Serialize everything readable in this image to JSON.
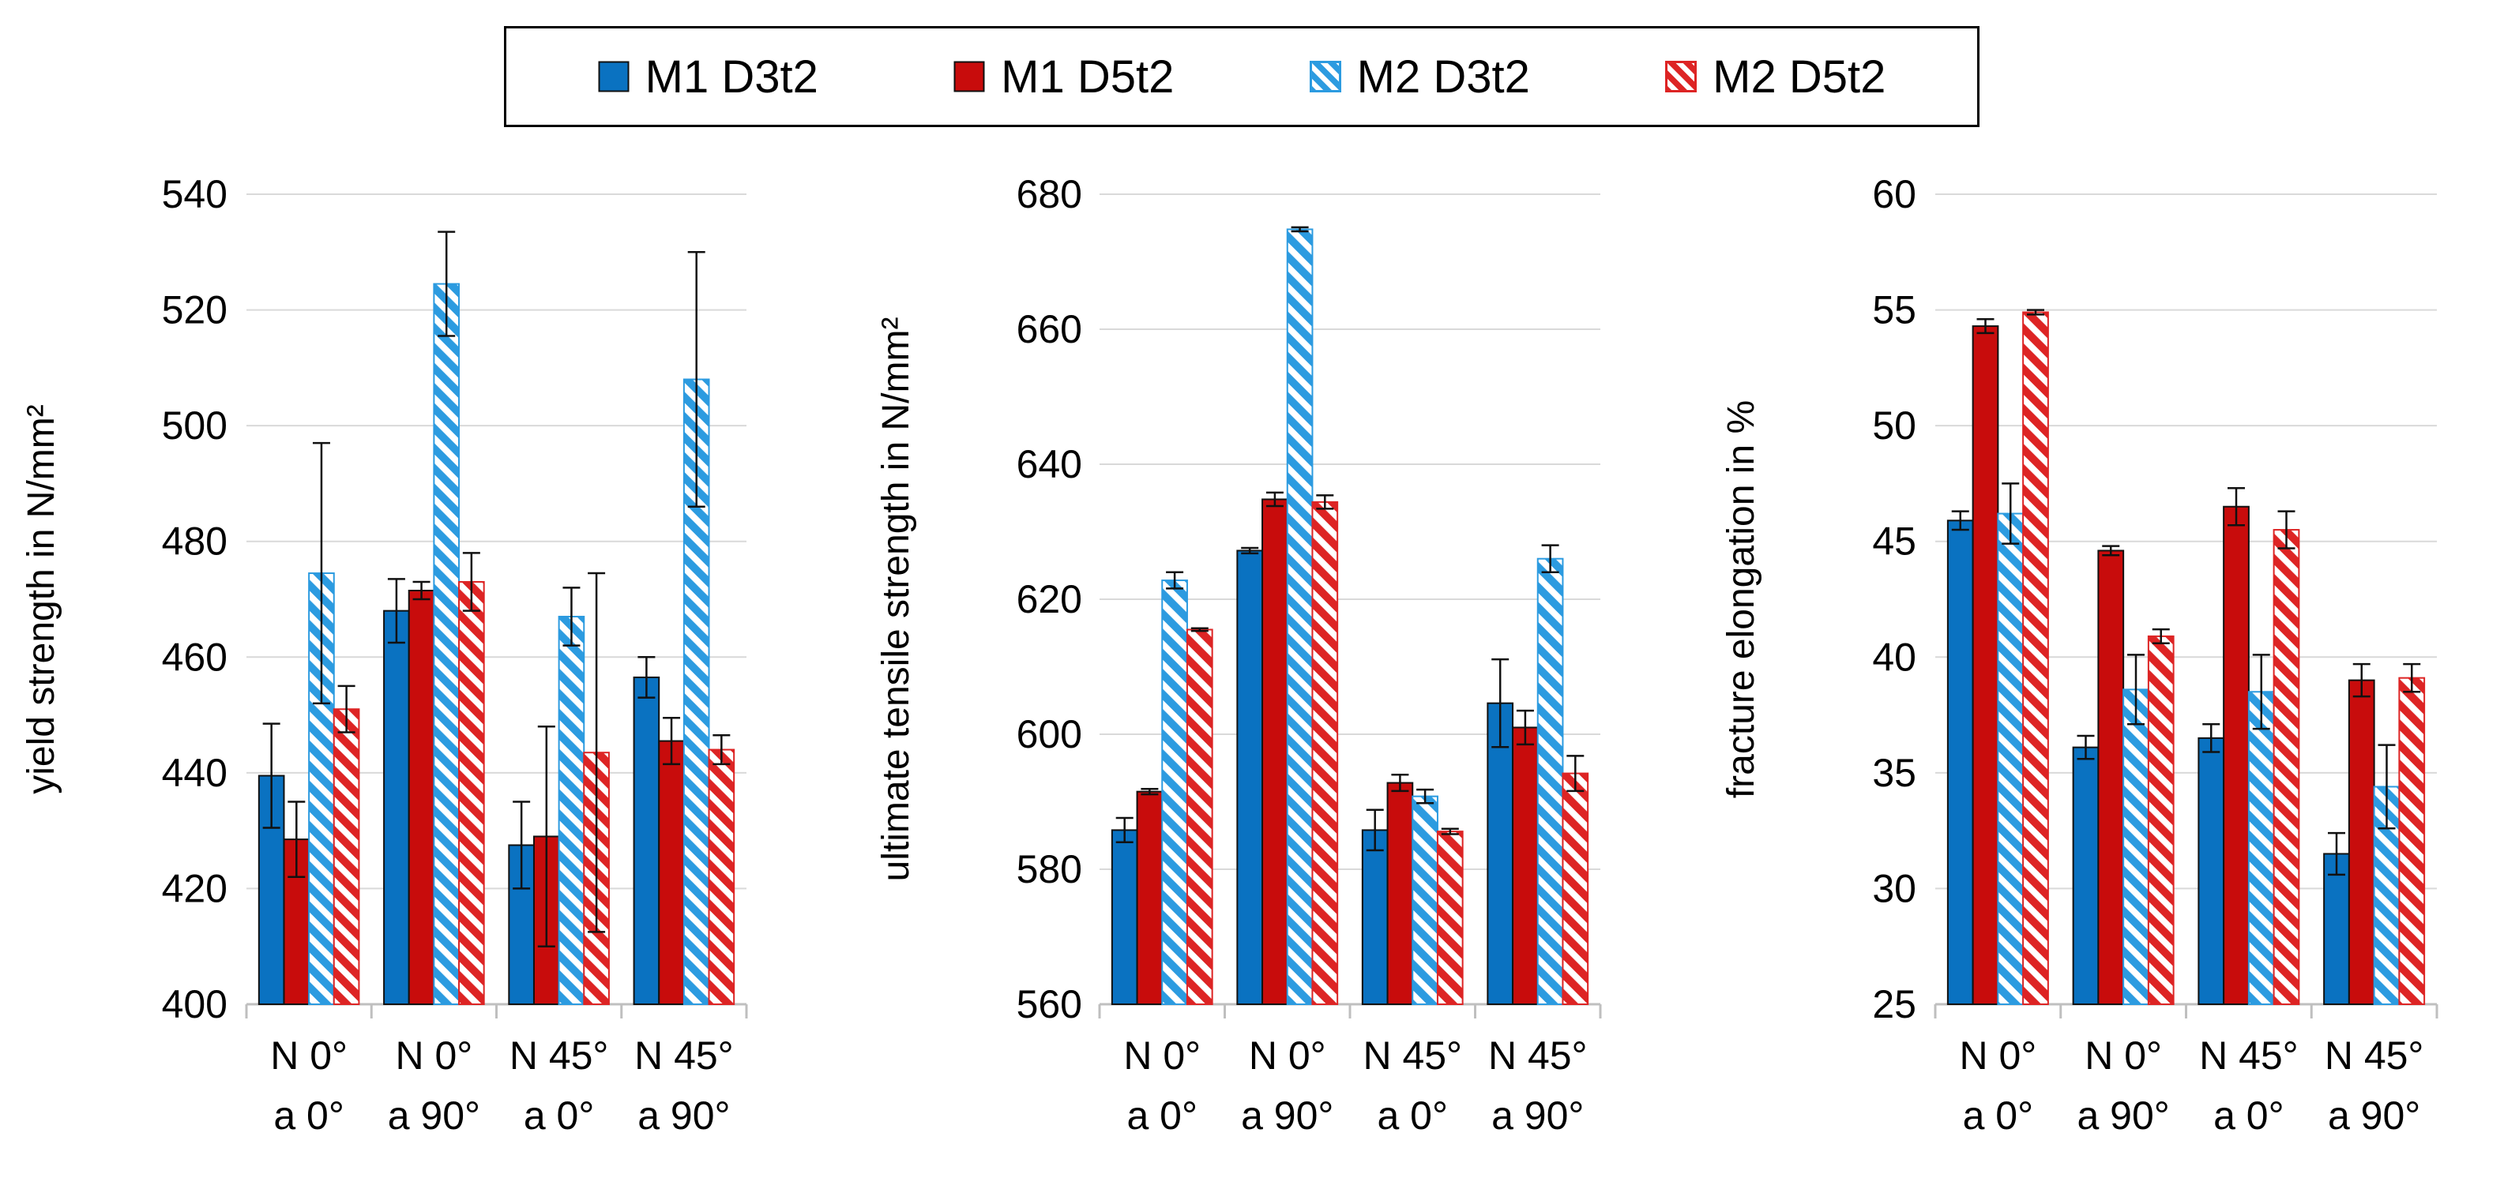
{
  "colors": {
    "M1 D3t2": "#0a72c1",
    "M1 D5t2": "#c80c0c",
    "M2 D3t2": "#2c9be0",
    "M2 D5t2": "#dd2424"
  },
  "legend": [
    {
      "label": "M1 D3t2",
      "style": "solid",
      "color": "#0a72c1"
    },
    {
      "label": "M1 D5t2",
      "style": "solid",
      "color": "#c80c0c"
    },
    {
      "label": "M2 D3t2",
      "style": "hatched",
      "color": "#2c9be0"
    },
    {
      "label": "M2 D5t2",
      "style": "hatched",
      "color": "#dd2424"
    }
  ],
  "chart_data": [
    {
      "type": "bar",
      "ylabel": "yield strength in N/mm²",
      "ylim": [
        400,
        540
      ],
      "yticks": [
        400,
        420,
        440,
        460,
        480,
        500,
        520,
        540
      ],
      "grid": true,
      "categories": [
        [
          "N 0°",
          "a 0°"
        ],
        [
          "N 0°",
          "a 90°"
        ],
        [
          "N 45°",
          "a 0°"
        ],
        [
          "N 45°",
          "a 90°"
        ]
      ],
      "series": [
        {
          "name": "M1 D3t2",
          "values": [
            439.5,
            468,
            427.5,
            456.5
          ],
          "errors": [
            9,
            5.5,
            7.5,
            3.5
          ]
        },
        {
          "name": "M1 D5t2",
          "values": [
            428.5,
            471.5,
            429,
            445.5
          ],
          "errors": [
            6.5,
            1.5,
            19,
            4
          ]
        },
        {
          "name": "M2 D3t2",
          "values": [
            474.5,
            524.5,
            467,
            508
          ],
          "errors": [
            22.5,
            9,
            5,
            22
          ]
        },
        {
          "name": "M2 D5t2",
          "values": [
            451,
            473,
            443.5,
            444
          ],
          "errors": [
            4,
            5,
            31,
            2.5
          ]
        }
      ]
    },
    {
      "type": "bar",
      "ylabel": "ultimate tensile strength in N/mm²",
      "ylim": [
        560,
        680
      ],
      "yticks": [
        560,
        580,
        600,
        620,
        640,
        660,
        680
      ],
      "grid": true,
      "categories": [
        [
          "N 0°",
          "a 0°"
        ],
        [
          "N 0°",
          "a 90°"
        ],
        [
          "N 45°",
          "a 0°"
        ],
        [
          "N 45°",
          "a 90°"
        ]
      ],
      "series": [
        {
          "name": "M1 D3t2",
          "values": [
            585.8,
            627.2,
            585.8,
            604.6
          ],
          "errors": [
            1.8,
            0.4,
            3,
            6.5
          ]
        },
        {
          "name": "M1 D5t2",
          "values": [
            591.5,
            634.8,
            592.8,
            601
          ],
          "errors": [
            0.4,
            1,
            1.2,
            2.5
          ]
        },
        {
          "name": "M2 D3t2",
          "values": [
            622.8,
            674.8,
            590.8,
            626
          ],
          "errors": [
            1.2,
            0.3,
            1,
            2
          ]
        },
        {
          "name": "M2 D5t2",
          "values": [
            615.5,
            634.4,
            585.6,
            594.2
          ],
          "errors": [
            0.2,
            1,
            0.4,
            2.6
          ]
        }
      ]
    },
    {
      "type": "bar",
      "ylabel": "fracture elongation in %",
      "ylim": [
        25,
        60
      ],
      "yticks": [
        25,
        30,
        35,
        40,
        45,
        50,
        55,
        60
      ],
      "grid": true,
      "categories": [
        [
          "N 0°",
          "a 0°"
        ],
        [
          "N 0°",
          "a 90°"
        ],
        [
          "N 45°",
          "a 0°"
        ],
        [
          "N 45°",
          "a 90°"
        ]
      ],
      "series": [
        {
          "name": "M1 D3t2",
          "values": [
            45.9,
            36.1,
            36.5,
            31.5
          ],
          "errors": [
            0.4,
            0.5,
            0.6,
            0.9
          ]
        },
        {
          "name": "M1 D5t2",
          "values": [
            54.3,
            44.6,
            46.5,
            39
          ],
          "errors": [
            0.3,
            0.2,
            0.8,
            0.7
          ]
        },
        {
          "name": "M2 D3t2",
          "values": [
            46.2,
            38.6,
            38.5,
            34.4
          ],
          "errors": [
            1.3,
            1.5,
            1.6,
            1.8
          ]
        },
        {
          "name": "M2 D5t2",
          "values": [
            54.9,
            40.9,
            45.5,
            39.1
          ],
          "errors": [
            0.1,
            0.3,
            0.8,
            0.6
          ]
        }
      ]
    }
  ]
}
